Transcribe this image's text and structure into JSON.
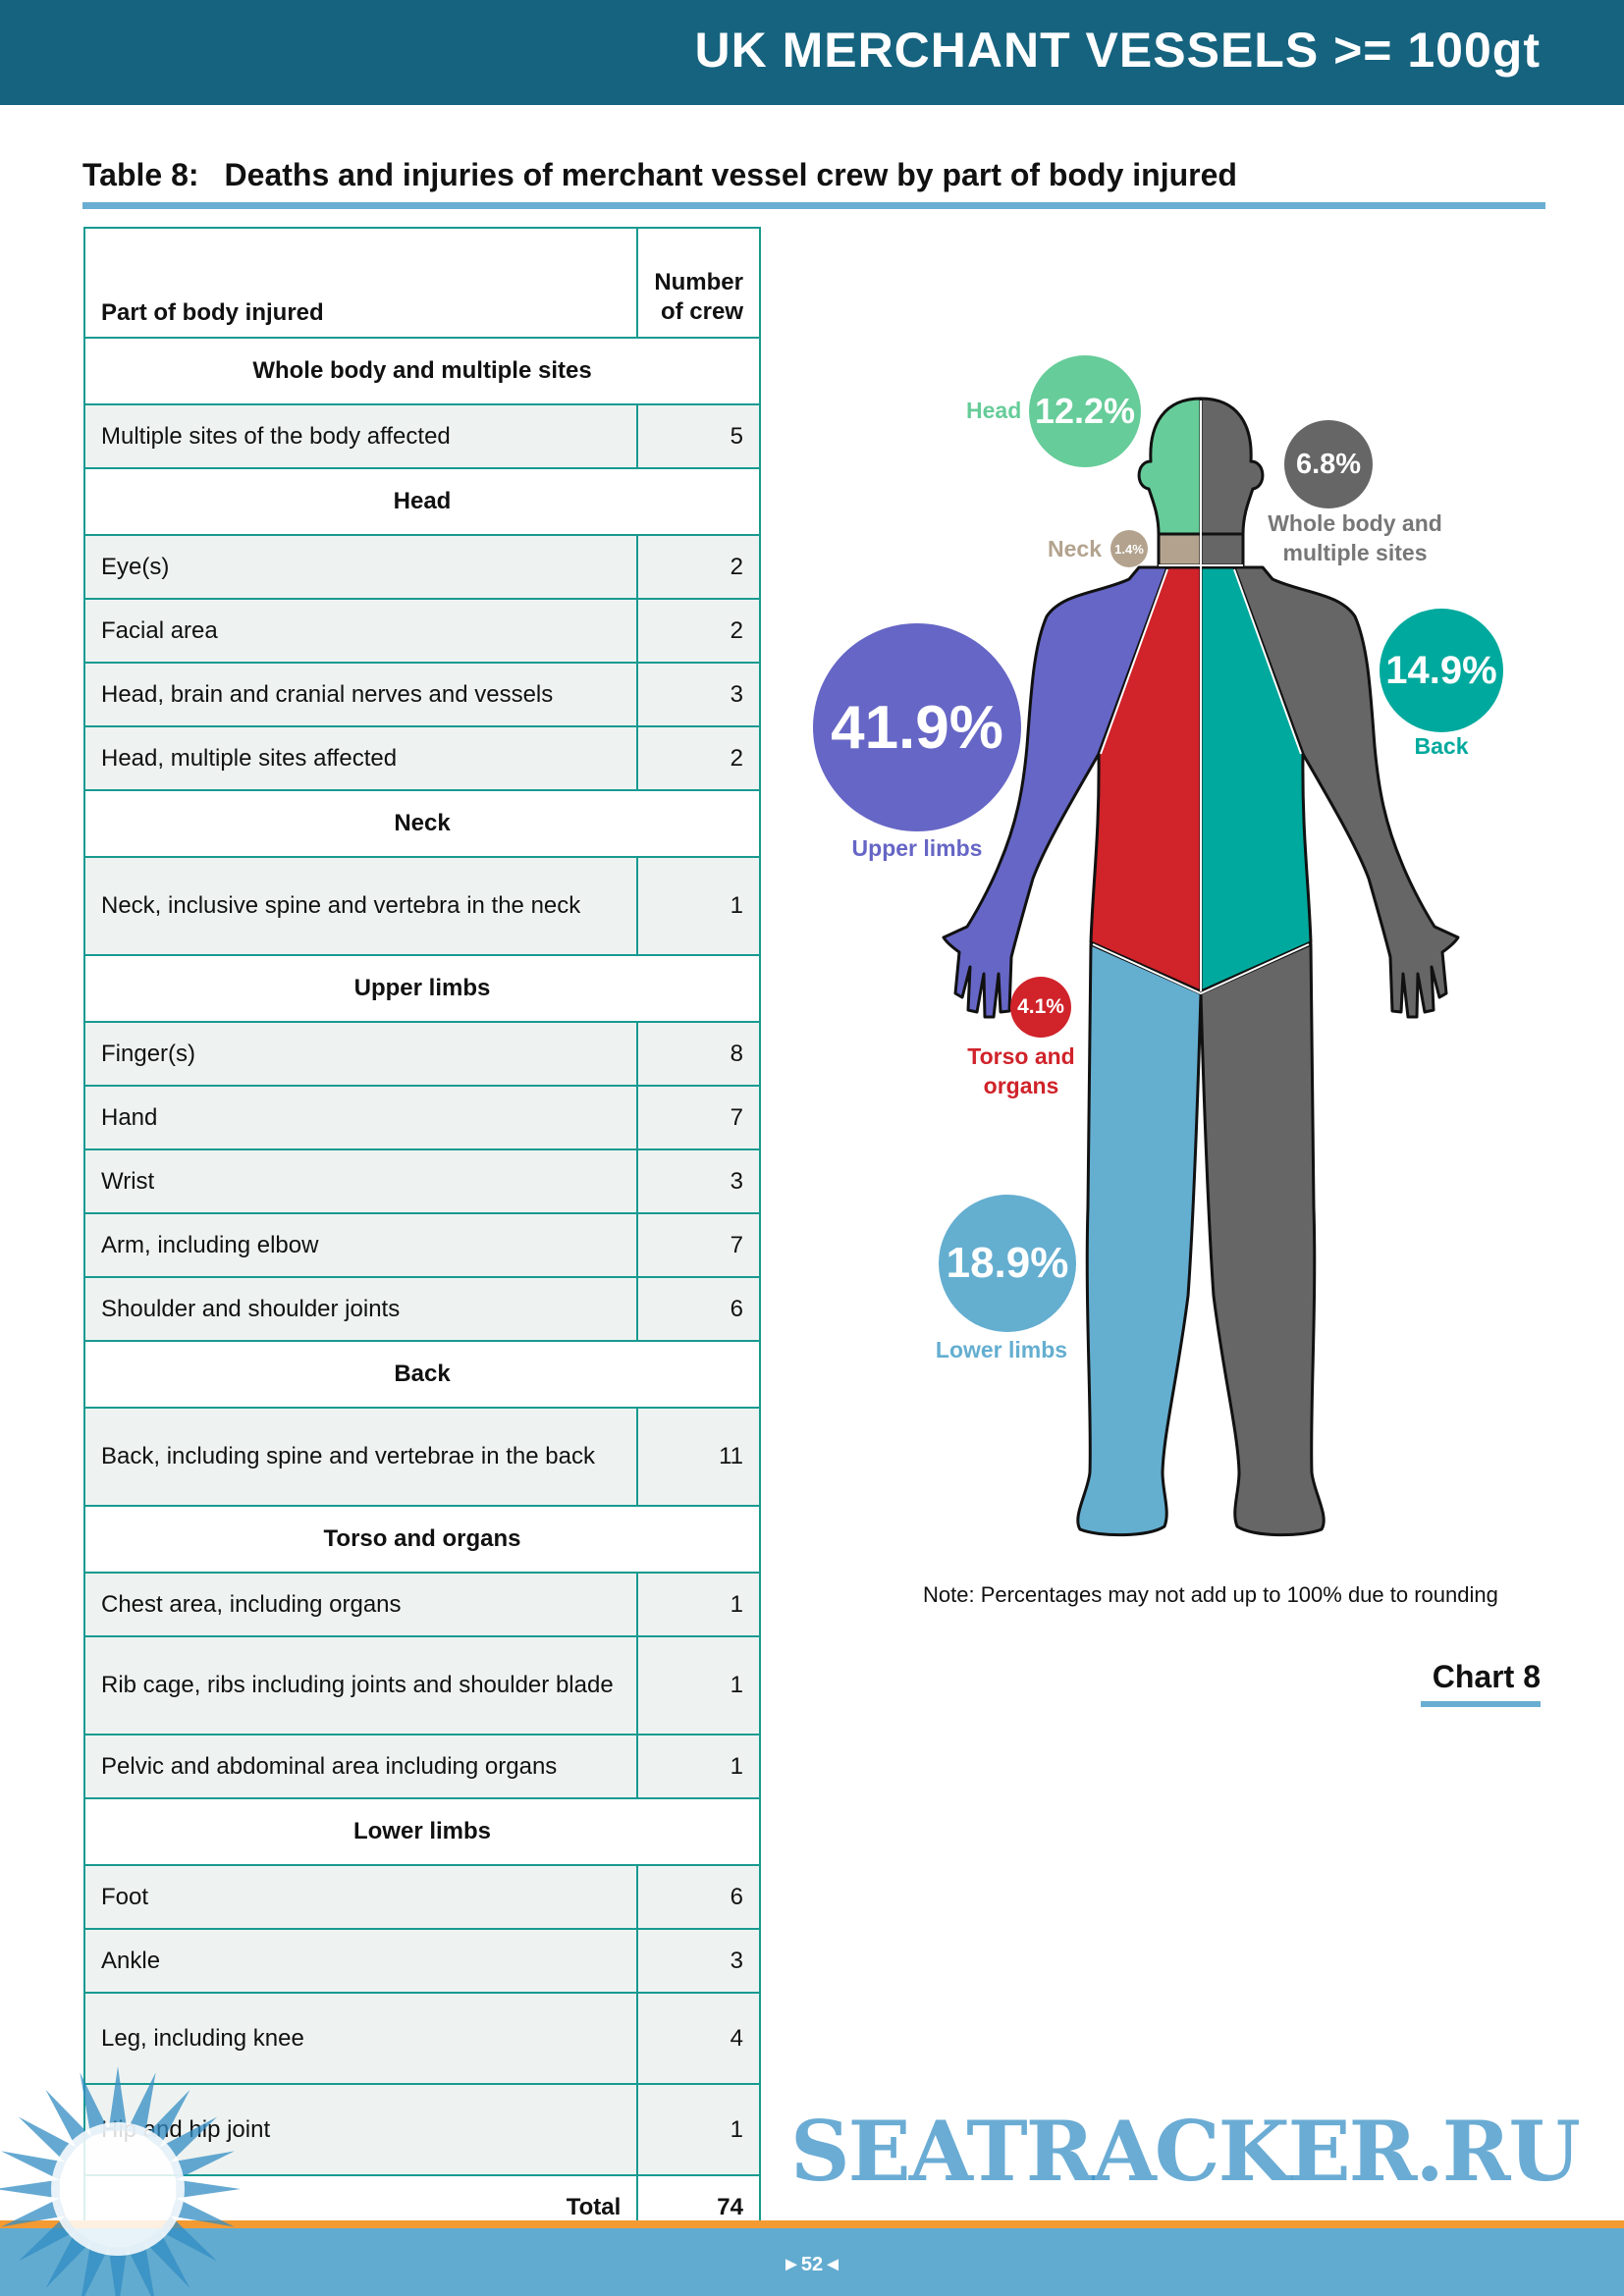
{
  "header": {
    "title": "UK MERCHANT VESSELS >= 100gt"
  },
  "table": {
    "number": "Table 8:",
    "title": "Deaths and injuries of merchant vessel crew by part of body injured",
    "col1": "Part of body injured",
    "col2": "Number of crew",
    "sections": [
      {
        "title": "Whole body and multiple sites",
        "rows": [
          {
            "label": "Multiple sites of the body affected",
            "value": "5"
          }
        ]
      },
      {
        "title": "Head",
        "rows": [
          {
            "label": "Eye(s)",
            "value": "2"
          },
          {
            "label": "Facial area",
            "value": "2"
          },
          {
            "label": "Head, brain and cranial nerves and vessels",
            "value": "3"
          },
          {
            "label": "Head, multiple sites affected",
            "value": "2"
          }
        ]
      },
      {
        "title": "Neck",
        "rows": [
          {
            "label": "Neck, inclusive spine and vertebra in the neck",
            "value": "1"
          }
        ]
      },
      {
        "title": "Upper limbs",
        "rows": [
          {
            "label": "Finger(s)",
            "value": "8"
          },
          {
            "label": "Hand",
            "value": "7"
          },
          {
            "label": "Wrist",
            "value": "3"
          },
          {
            "label": "Arm, including elbow",
            "value": "7"
          },
          {
            "label": "Shoulder and shoulder joints",
            "value": "6"
          }
        ]
      },
      {
        "title": "Back",
        "rows": [
          {
            "label": "Back, including spine and vertebrae in the back",
            "value": "11"
          }
        ]
      },
      {
        "title": "Torso and organs",
        "rows": [
          {
            "label": "Chest area, including organs",
            "value": "1"
          },
          {
            "label": "Rib cage, ribs including joints and shoulder blade",
            "value": "1"
          },
          {
            "label": "Pelvic and abdominal area including organs",
            "value": "1"
          }
        ]
      },
      {
        "title": "Lower limbs",
        "rows": [
          {
            "label": "Foot",
            "value": "6"
          },
          {
            "label": "Ankle",
            "value": "3"
          },
          {
            "label": "Leg, including knee",
            "value": "4"
          },
          {
            "label": "Hip and hip joint",
            "value": "1"
          }
        ]
      }
    ],
    "total_label": "Total",
    "total_value": "74"
  },
  "chart_data": {
    "type": "bubble",
    "title": "Chart 8",
    "categories": [
      "Head",
      "Whole body and multiple sites",
      "Neck",
      "Upper limbs",
      "Back",
      "Torso and organs",
      "Lower limbs"
    ],
    "values": [
      12.2,
      6.8,
      1.4,
      41.9,
      14.9,
      4.1,
      18.9
    ],
    "value_labels": [
      "12.2%",
      "6.8%",
      "1.4%",
      "41.9%",
      "14.9%",
      "4.1%",
      "18.9%"
    ],
    "colors": [
      "#66cc99",
      "#666666",
      "#b3a38e",
      "#6666c6",
      "#00a99d",
      "#d0232a",
      "#64aed0"
    ],
    "note": "Note: Percentages may not add up to 100% due to rounding"
  },
  "chart_labels": {
    "head": "Head",
    "whole1": "Whole body and",
    "whole2": "multiple sites",
    "neck": "Neck",
    "upper": "Upper limbs",
    "back": "Back",
    "torso1": "Torso and",
    "torso2": "organs",
    "lower": "Lower limbs"
  },
  "footer": {
    "page": "►52◄",
    "watermark": "SEATRACKER.RU"
  }
}
